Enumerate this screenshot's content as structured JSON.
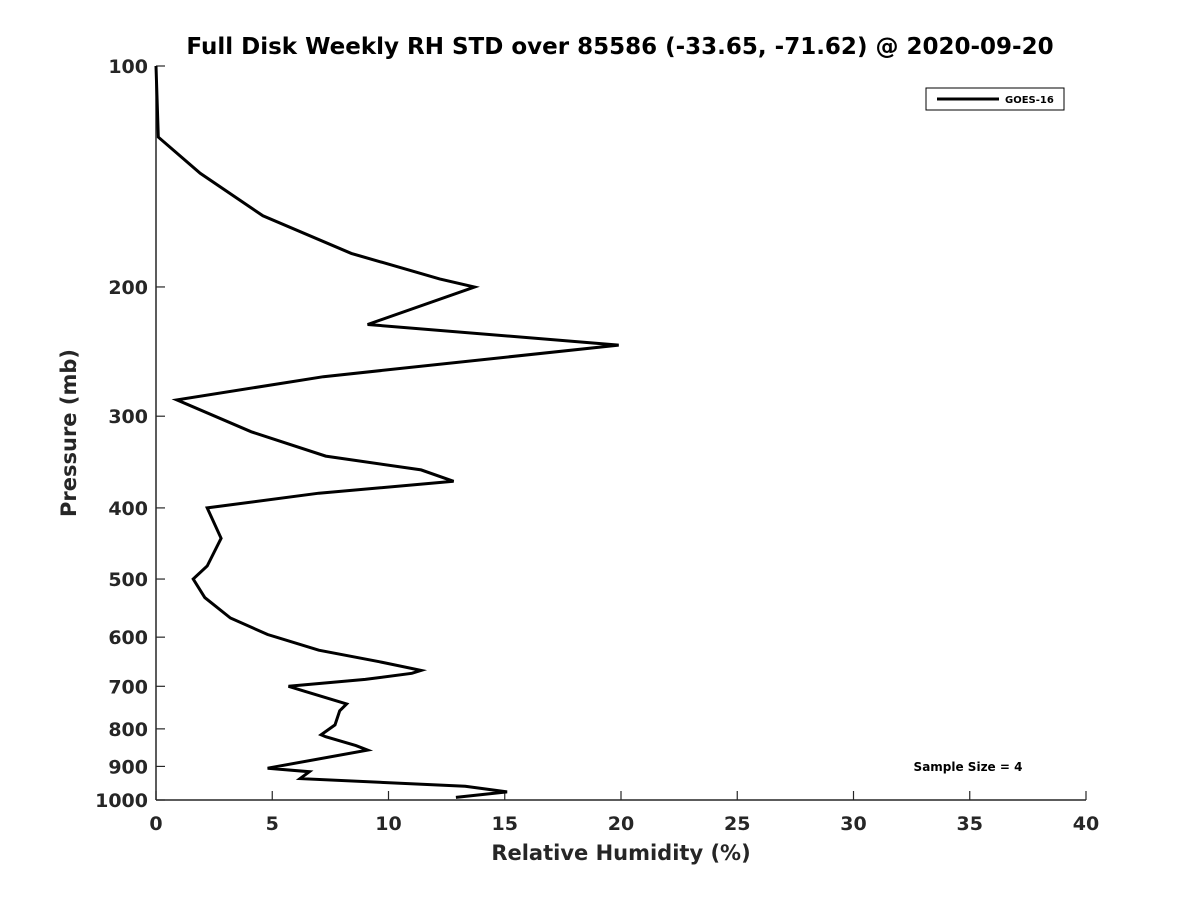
{
  "chart_data": {
    "type": "line",
    "title": "Full Disk Weekly RH STD over 85586 (-33.65, -71.62) @ 2020-09-20",
    "xlabel": "Relative Humidity (%)",
    "ylabel": "Pressure (mb)",
    "xlim": [
      0,
      40
    ],
    "ylim": [
      100,
      1000
    ],
    "yscale": "log",
    "y_reversed": true,
    "xticks": [
      0,
      5,
      10,
      15,
      20,
      25,
      30,
      35,
      40
    ],
    "yticks": [
      100,
      200,
      300,
      400,
      500,
      600,
      700,
      800,
      900,
      1000
    ],
    "grid": false,
    "legend_position": "top-right",
    "series": [
      {
        "name": "GOES-16",
        "color": "#000000",
        "points": [
          [
            0.0,
            100
          ],
          [
            0.1,
            125
          ],
          [
            1.9,
            140
          ],
          [
            4.6,
            160
          ],
          [
            8.4,
            180
          ],
          [
            12.2,
            195
          ],
          [
            13.7,
            200
          ],
          [
            9.1,
            225
          ],
          [
            19.9,
            240
          ],
          [
            7.2,
            265
          ],
          [
            0.9,
            285
          ],
          [
            4.1,
            315
          ],
          [
            7.3,
            340
          ],
          [
            11.4,
            355
          ],
          [
            12.8,
            368
          ],
          [
            7.0,
            382
          ],
          [
            2.2,
            400
          ],
          [
            2.8,
            440
          ],
          [
            2.2,
            480
          ],
          [
            1.6,
            500
          ],
          [
            2.1,
            530
          ],
          [
            3.2,
            565
          ],
          [
            4.8,
            595
          ],
          [
            7.0,
            625
          ],
          [
            9.6,
            648
          ],
          [
            11.4,
            666
          ],
          [
            11.0,
            672
          ],
          [
            9.0,
            685
          ],
          [
            5.7,
            700
          ],
          [
            6.4,
            711
          ],
          [
            8.2,
            740
          ],
          [
            7.9,
            756
          ],
          [
            7.7,
            790
          ],
          [
            7.1,
            815
          ],
          [
            7.3,
            820
          ],
          [
            8.6,
            843
          ],
          [
            9.1,
            855
          ],
          [
            4.8,
            905
          ],
          [
            6.6,
            915
          ],
          [
            6.2,
            935
          ],
          [
            13.3,
            958
          ],
          [
            15.1,
            975
          ],
          [
            12.9,
            992
          ]
        ]
      }
    ],
    "annotation": "Sample Size = 4"
  }
}
